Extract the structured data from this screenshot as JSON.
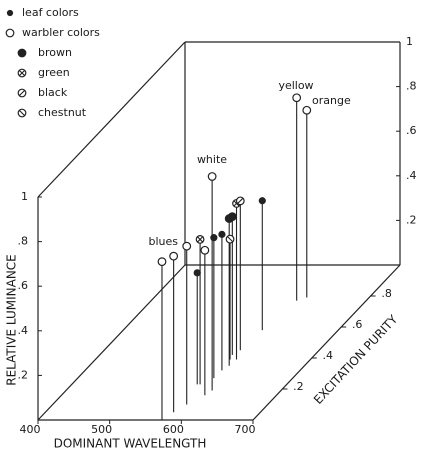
{
  "chart_data": {
    "type": "scatter3d",
    "xlabel": "DOMINANT WAVELENGTH",
    "ylabel": "EXCITATION PURITY",
    "zlabel": "RELATIVE LUMINANCE",
    "xlim": [
      400,
      700
    ],
    "xticks": [
      400,
      500,
      600,
      700
    ],
    "ylim": [
      0,
      1
    ],
    "yticks": [
      {
        "value": 0.2,
        "label": ".2"
      },
      {
        "value": 0.4,
        "label": ".4"
      },
      {
        "value": 0.6,
        "label": ".6"
      },
      {
        "value": 0.8,
        "label": ".8"
      }
    ],
    "zlim": [
      0,
      1
    ],
    "zticks": [
      {
        "value": 0.2,
        "label": ".2"
      },
      {
        "value": 0.4,
        "label": ".4"
      },
      {
        "value": 0.6,
        "label": ".6"
      },
      {
        "value": 0.8,
        "label": ".8"
      },
      1
    ],
    "series": [
      {
        "name": "leaf colors",
        "marker": "dot",
        "color": "#222",
        "x": [
          575,
          590,
          591,
          594
        ],
        "y": [
          0.23,
          0.27,
          0.32,
          0.58
        ],
        "z": [
          0.5,
          0.63,
          0.61,
          0.58
        ]
      },
      {
        "name": "warbler colors",
        "marker": "open",
        "color": "#222",
        "x": [
          573,
          579,
          587,
          600,
          604,
          603,
          613
        ],
        "y": [
          0,
          0.05,
          0.1,
          0.16,
          0.19,
          0.77,
          0.79
        ],
        "z": [
          0.71,
          0.7,
          0.71,
          0.65,
          0.96,
          0.91,
          0.84
        ]
      },
      {
        "name": "brown",
        "marker": "filled",
        "color": "#222",
        "x": [
          595,
          585
        ],
        "y": [
          0.35,
          0.42
        ],
        "z": [
          0.66,
          0.62
        ]
      },
      {
        "name": "green",
        "marker": "cross",
        "color": "#222",
        "x": [
          579,
          597
        ],
        "y": [
          0.23,
          0.39
        ],
        "z": [
          0.65,
          0.7
        ]
      },
      {
        "name": "black",
        "marker": "slash",
        "color": "#222",
        "x": [
          590
        ],
        "y": [
          0.45
        ],
        "z": [
          0.67
        ]
      },
      {
        "name": "chestnut",
        "marker": "backslash",
        "color": "#222",
        "x": [
          588
        ],
        "y": [
          0.39
        ],
        "z": [
          0.54
        ]
      }
    ],
    "annotations": [
      "yellow",
      "orange",
      "white",
      "blues"
    ]
  }
}
